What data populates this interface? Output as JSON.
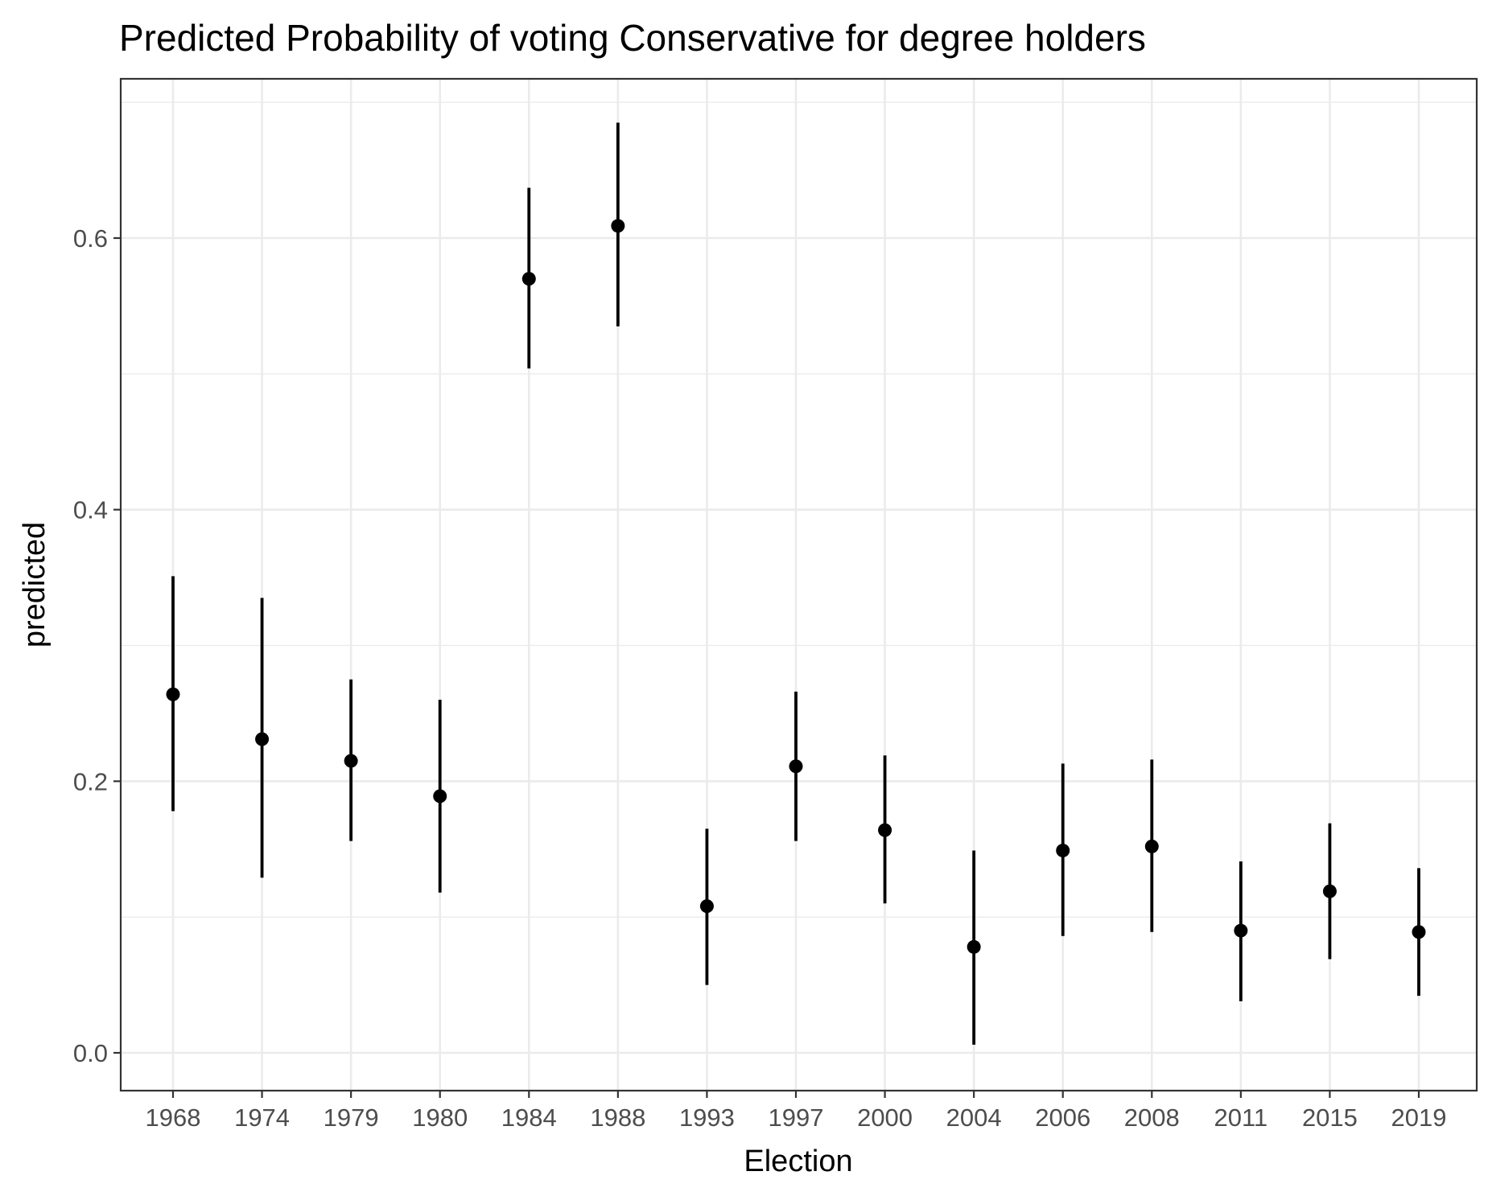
{
  "chart_data": {
    "type": "scatter",
    "title": "Predicted Probability of voting Conservative for degree holders",
    "xlabel": "Election",
    "ylabel": "predicted",
    "categories": [
      "1968",
      "1974",
      "1979",
      "1980",
      "1984",
      "1988",
      "1993",
      "1997",
      "2000",
      "2004",
      "2006",
      "2008",
      "2011",
      "2015",
      "2019"
    ],
    "series": [
      {
        "values": [
          0.264,
          0.231,
          0.215,
          0.189,
          0.57,
          0.609,
          0.108,
          0.211,
          0.164,
          0.078,
          0.149,
          0.152,
          0.09,
          0.119,
          0.089
        ],
        "lower": [
          0.178,
          0.129,
          0.156,
          0.118,
          0.504,
          0.535,
          0.05,
          0.156,
          0.11,
          0.006,
          0.086,
          0.089,
          0.038,
          0.069,
          0.042
        ],
        "upper": [
          0.351,
          0.335,
          0.275,
          0.26,
          0.637,
          0.685,
          0.165,
          0.266,
          0.219,
          0.149,
          0.213,
          0.216,
          0.141,
          0.169,
          0.136
        ]
      }
    ],
    "yticks": [
      "0.0",
      "0.2",
      "0.4",
      "0.6"
    ],
    "ylim": [
      -0.028,
      0.716
    ],
    "grid": true,
    "legend": "none",
    "colors": {
      "point": "#000000",
      "errorbar": "#000000",
      "grid": "#ebebeb",
      "panel_border": "#333333",
      "tick_text": "#4d4d4d"
    }
  }
}
